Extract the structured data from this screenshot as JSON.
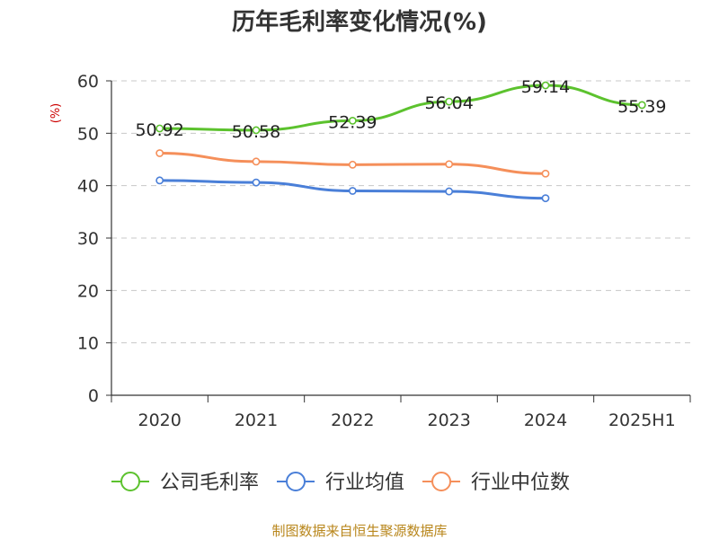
{
  "chart_data": {
    "type": "line",
    "title": "历年毛利率变化情况(%)",
    "ylabel": "(%)",
    "ylim": [
      0,
      60
    ],
    "yticks": [
      0,
      10,
      20,
      30,
      40,
      50,
      60
    ],
    "categories": [
      "2020",
      "2021",
      "2022",
      "2023",
      "2024",
      "2025H1"
    ],
    "grid": true,
    "legend_position": "bottom",
    "series": [
      {
        "name": "公司毛利率",
        "color": "#5cc22e",
        "values": [
          50.92,
          50.58,
          52.39,
          56.04,
          59.14,
          55.39
        ],
        "labels": [
          "50.92",
          "50.58",
          "52.39",
          "56.04",
          "59.14",
          "55.39"
        ]
      },
      {
        "name": "行业均值",
        "color": "#4a7fd8",
        "values": [
          41.0,
          40.6,
          39.0,
          38.9,
          37.6,
          null
        ]
      },
      {
        "name": "行业中位数",
        "color": "#f58f5a",
        "values": [
          46.2,
          44.6,
          44.0,
          44.1,
          42.3,
          null
        ]
      }
    ]
  },
  "source": "制图数据来自恒生聚源数据库"
}
